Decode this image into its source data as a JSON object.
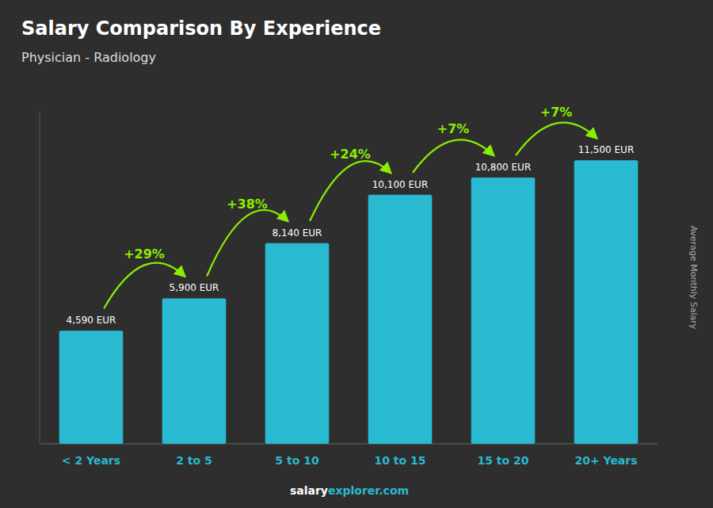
{
  "chart_data": {
    "type": "bar",
    "title": "Salary Comparison By Experience",
    "subtitle": "Physician - Radiology",
    "ylabel": "Average Monthly Salary",
    "categories": [
      "< 2 Years",
      "2 to 5",
      "5 to 10",
      "10 to 15",
      "15 to 20",
      "20+ Years"
    ],
    "values": [
      4590,
      5900,
      8140,
      10100,
      10800,
      11500
    ],
    "value_labels": [
      "4,590 EUR",
      "5,900 EUR",
      "8,140 EUR",
      "10,100 EUR",
      "10,800 EUR",
      "11,500 EUR"
    ],
    "data_labels": true,
    "annotations": [
      "+29%",
      "+38%",
      "+24%",
      "+7%",
      "+7%"
    ],
    "footer": [
      "salary",
      "explorer.com"
    ],
    "color": "#29b9d0",
    "ylim": [
      0,
      13500
    ],
    "tick_labels": "x",
    "grid": false
  }
}
